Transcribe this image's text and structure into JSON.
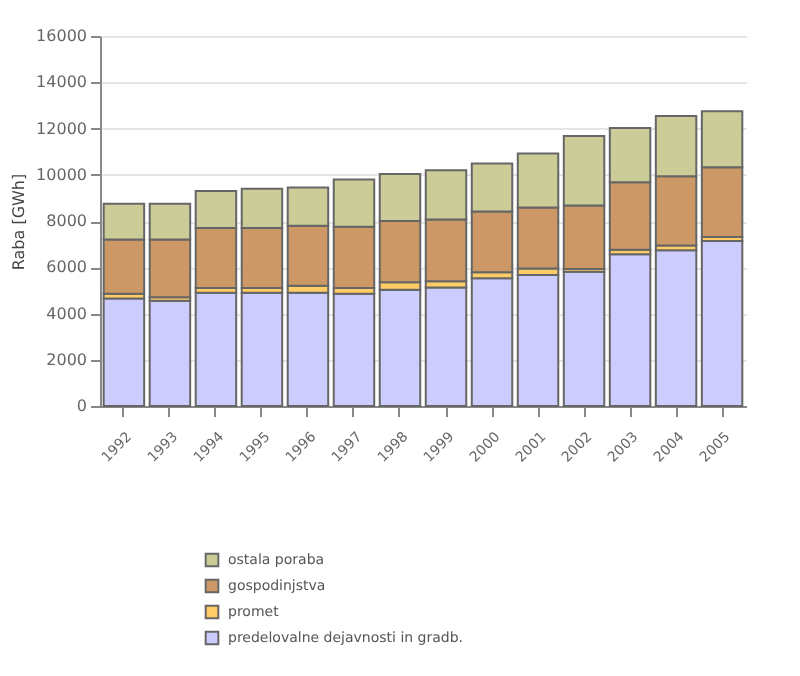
{
  "chart_data": {
    "type": "bar",
    "stacked": true,
    "ylabel": "Raba [GWh]",
    "categories": [
      "1992",
      "1993",
      "1994",
      "1995",
      "1996",
      "1997",
      "1998",
      "1999",
      "2000",
      "2001",
      "2002",
      "2003",
      "2004",
      "2005"
    ],
    "series": [
      {
        "name": "predelovalne dejavnosti in gradb.",
        "color": "#ccccff",
        "values": [
          4650,
          4550,
          4900,
          4900,
          4900,
          4850,
          5030,
          5120,
          5520,
          5660,
          5810,
          6560,
          6730,
          7140
        ]
      },
      {
        "name": "promet",
        "color": "#ffcc66",
        "values": [
          200,
          150,
          200,
          200,
          300,
          250,
          320,
          280,
          260,
          290,
          110,
          200,
          210,
          170
        ]
      },
      {
        "name": "gospodinjstva",
        "color": "#cc9966",
        "values": [
          2350,
          2500,
          2600,
          2600,
          2600,
          2650,
          2650,
          2660,
          2630,
          2630,
          2750,
          2920,
          3000,
          3010
        ]
      },
      {
        "name": "ostala poraba",
        "color": "#cccc99",
        "values": [
          1550,
          1550,
          1600,
          1700,
          1650,
          2050,
          2030,
          2140,
          2080,
          2340,
          3010,
          2340,
          2600,
          2430
        ]
      }
    ],
    "ylim": [
      0,
      16000
    ],
    "yticks": [
      0,
      2000,
      4000,
      6000,
      8000,
      10000,
      12000,
      14000,
      16000
    ],
    "grid": "y",
    "legend": "bottom"
  }
}
